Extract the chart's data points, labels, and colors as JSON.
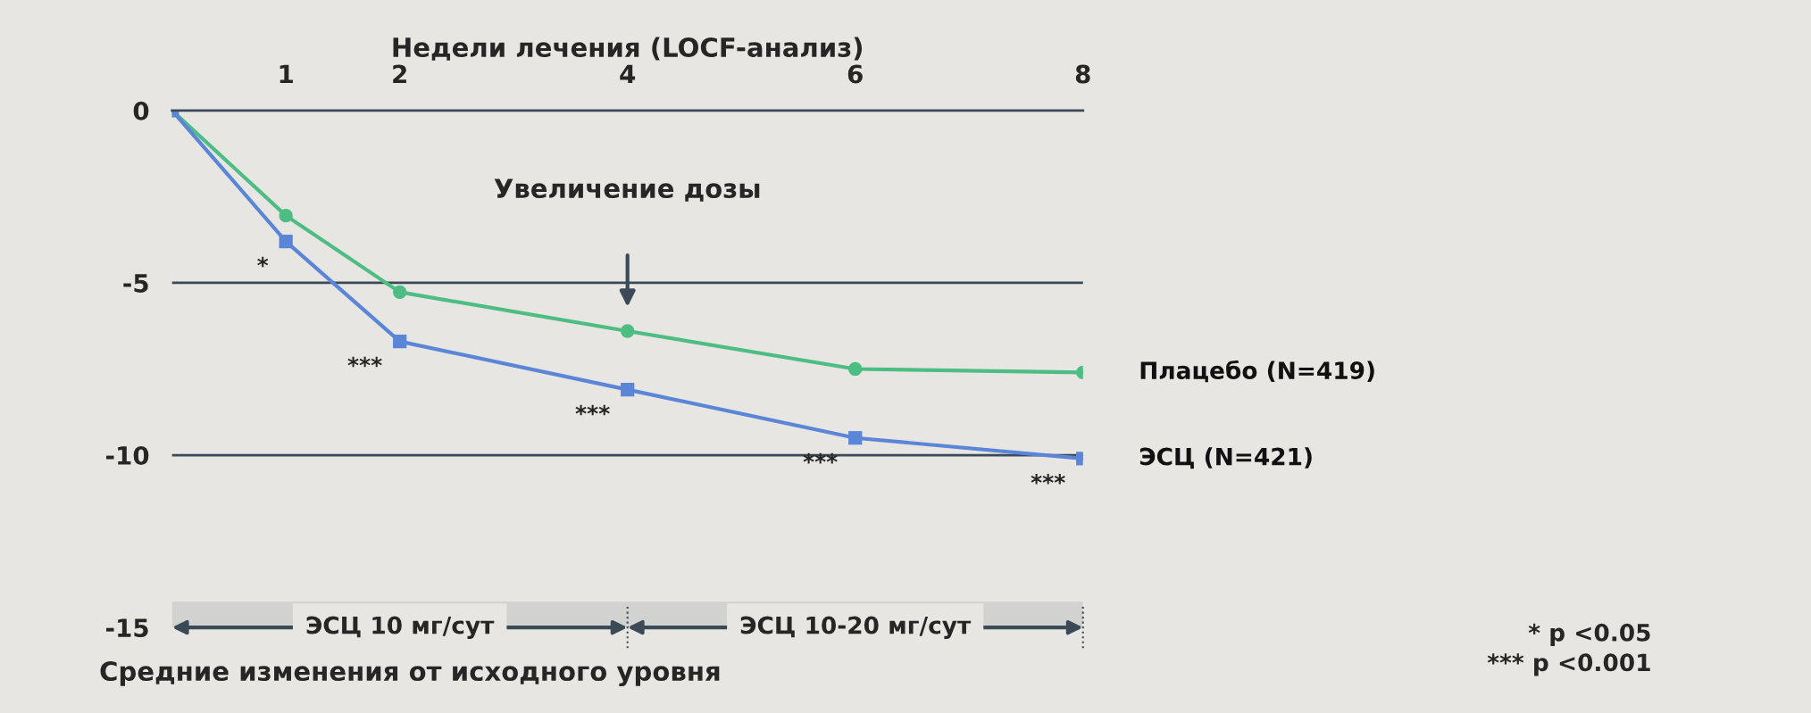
{
  "chart_data": {
    "type": "line",
    "xlabel": "Недели лечения (LOCF-анализ)",
    "ylabel": "Средние изменения от исходного уровня",
    "x": [
      0,
      1,
      2,
      4,
      6,
      8
    ],
    "xlim": [
      0,
      8
    ],
    "xticks": [
      1,
      2,
      4,
      6,
      8
    ],
    "ylim": [
      -15,
      0
    ],
    "yticks": [
      0,
      -5,
      -10,
      -15
    ],
    "grid": false,
    "series": [
      {
        "name": "Плацебо (N=419)",
        "color": "#4dbd84",
        "marker": "circle",
        "values": [
          0,
          -3.05,
          -5.27,
          -6.4,
          -7.5,
          -7.6
        ]
      },
      {
        "name": "ЭСЦ (N=421)",
        "color": "#5b86d8",
        "marker": "square",
        "values": [
          0,
          -3.8,
          -6.7,
          -8.1,
          -9.5,
          -10.1
        ]
      }
    ],
    "ref_lines": [
      {
        "axis": "y",
        "value": -5,
        "color": "#3b4a56"
      },
      {
        "axis": "y",
        "value": -10,
        "color": "#3b4a56"
      }
    ],
    "bands": [
      {
        "axis": "x",
        "from": 0,
        "to": 4,
        "label": "ЭСЦ 10 мг/сут",
        "color": "#3b4a56"
      },
      {
        "axis": "x",
        "from": 4,
        "to": 8,
        "label": "ЭСЦ 10-20 мг/сут",
        "color": "#3b4a56"
      }
    ],
    "annotations": [
      "Увеличение дозы",
      {
        "text": "*",
        "x": 1,
        "y": -3.8
      },
      {
        "text": "***",
        "x": 2,
        "y": -6.7
      },
      {
        "text": "***",
        "x": 4,
        "y": -8.1
      },
      {
        "text": "***",
        "x": 6,
        "y": -9.5
      },
      {
        "text": "***",
        "x": 8,
        "y": -10.1
      },
      "* p <0.05",
      "*** p <0.001"
    ]
  }
}
